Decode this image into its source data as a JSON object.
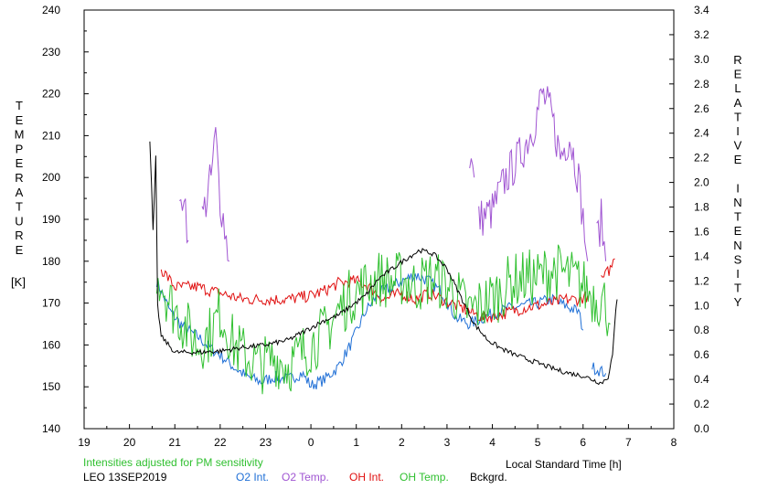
{
  "chart_data": {
    "type": "line",
    "x_unit_label": "Local Standard Time [h]",
    "x_ticks": [
      "19",
      "20",
      "21",
      "22",
      "23",
      "0",
      "1",
      "2",
      "3",
      "4",
      "5",
      "6",
      "7",
      "8"
    ],
    "x_range": [
      19,
      32
    ],
    "y_left": {
      "label_letters": [
        "T",
        "E",
        "M",
        "P",
        "E",
        "R",
        "A",
        "T",
        "U",
        "R",
        "E"
      ],
      "unit": "[K]",
      "range": [
        140,
        240
      ],
      "ticks": [
        "140",
        "150",
        "160",
        "170",
        "180",
        "190",
        "200",
        "210",
        "220",
        "230",
        "240"
      ]
    },
    "y_right": {
      "label_letters": [
        "R",
        "E",
        "L",
        "A",
        "T",
        "I",
        "V",
        "E",
        "",
        "I",
        "N",
        "T",
        "E",
        "N",
        "S",
        "I",
        "T",
        "Y"
      ],
      "range": [
        0.0,
        3.4
      ],
      "ticks": [
        "0.0",
        "0.2",
        "0.4",
        "0.6",
        "0.8",
        "1.0",
        "1.2",
        "1.4",
        "1.6",
        "1.8",
        "2.0",
        "2.2",
        "2.4",
        "2.6",
        "2.8",
        "3.0",
        "3.2",
        "3.4"
      ]
    },
    "note": "Intensities adjusted for PM sensitivity",
    "station": "LEO 13SEP2019",
    "colors": {
      "o2_int": "#1f6fd6",
      "o2_temp": "#a055d2",
      "oh_int": "#e01010",
      "oh_temp": "#30c030",
      "bckgrd": "#000000"
    },
    "series": [
      {
        "name": "O2 Int.",
        "key": "o2_int",
        "axis": "right",
        "noise": 0.05,
        "segments": [
          [
            [
              20.6,
              1.2
            ],
            [
              20.9,
              0.95
            ],
            [
              21.2,
              0.82
            ],
            [
              21.5,
              0.75
            ],
            [
              21.8,
              0.65
            ],
            [
              22.0,
              0.6
            ],
            [
              22.3,
              0.5
            ],
            [
              22.6,
              0.42
            ],
            [
              22.9,
              0.38
            ],
            [
              23.2,
              0.42
            ],
            [
              23.5,
              0.4
            ],
            [
              23.8,
              0.45
            ],
            [
              24.0,
              0.35
            ],
            [
              24.3,
              0.4
            ],
            [
              24.6,
              0.5
            ],
            [
              24.9,
              0.7
            ],
            [
              25.2,
              0.95
            ],
            [
              25.5,
              1.1
            ],
            [
              25.8,
              1.15
            ],
            [
              26.0,
              1.2
            ],
            [
              26.3,
              1.25
            ],
            [
              26.6,
              1.2
            ],
            [
              26.9,
              1.1
            ],
            [
              27.2,
              0.9
            ],
            [
              27.5,
              0.85
            ],
            [
              27.8,
              0.9
            ],
            [
              28.1,
              0.95
            ],
            [
              28.4,
              0.98
            ],
            [
              28.7,
              1.0
            ],
            [
              29.0,
              1.02
            ],
            [
              29.3,
              1.05
            ],
            [
              29.6,
              1.0
            ],
            [
              29.9,
              0.95
            ],
            [
              30.0,
              0.8
            ]
          ],
          [
            [
              30.2,
              0.5
            ],
            [
              30.5,
              0.45
            ]
          ]
        ]
      },
      {
        "name": "O2 Temp.",
        "key": "o2_temp",
        "axis": "left",
        "noise": 5,
        "segments": [
          [
            [
              21.1,
              190
            ],
            [
              21.2,
              198
            ],
            [
              21.3,
              185
            ]
          ],
          [
            [
              21.6,
              190
            ],
            [
              21.8,
              200
            ],
            [
              21.9,
              210
            ],
            [
              22.0,
              195
            ],
            [
              22.1,
              188
            ],
            [
              22.2,
              180
            ]
          ],
          [
            [
              27.5,
              205
            ],
            [
              27.6,
              200
            ]
          ],
          [
            [
              27.7,
              190
            ],
            [
              28.0,
              192
            ],
            [
              28.3,
              200
            ],
            [
              28.6,
              205
            ],
            [
              28.9,
              212
            ],
            [
              29.1,
              220
            ],
            [
              29.3,
              215
            ],
            [
              29.5,
              205
            ],
            [
              29.7,
              210
            ],
            [
              29.9,
              200
            ],
            [
              30.0,
              190
            ],
            [
              30.1,
              180
            ]
          ],
          [
            [
              30.3,
              185
            ],
            [
              30.4,
              190
            ],
            [
              30.5,
              180
            ]
          ]
        ]
      },
      {
        "name": "OH Int.",
        "key": "oh_int",
        "axis": "right",
        "noise": 0.05,
        "segments": [
          [
            [
              20.7,
              1.3
            ],
            [
              21.0,
              1.15
            ],
            [
              21.5,
              1.15
            ],
            [
              22.0,
              1.1
            ],
            [
              22.5,
              1.05
            ],
            [
              23.0,
              1.05
            ],
            [
              23.5,
              1.05
            ],
            [
              24.0,
              1.08
            ],
            [
              24.3,
              1.12
            ],
            [
              24.6,
              1.18
            ],
            [
              25.0,
              1.2
            ],
            [
              25.3,
              1.15
            ],
            [
              25.6,
              1.05
            ],
            [
              26.0,
              1.1
            ],
            [
              26.3,
              1.05
            ],
            [
              26.6,
              1.1
            ],
            [
              26.9,
              1.05
            ],
            [
              27.2,
              1.0
            ],
            [
              27.5,
              0.95
            ],
            [
              27.8,
              0.9
            ],
            [
              28.1,
              0.92
            ],
            [
              28.4,
              0.95
            ],
            [
              28.7,
              0.98
            ],
            [
              29.0,
              1.0
            ],
            [
              29.3,
              1.02
            ],
            [
              29.6,
              1.05
            ],
            [
              29.9,
              1.05
            ],
            [
              30.1,
              1.08
            ]
          ],
          [
            [
              30.4,
              1.2
            ],
            [
              30.6,
              1.3
            ],
            [
              30.7,
              1.38
            ]
          ]
        ]
      },
      {
        "name": "OH Temp.",
        "key": "oh_temp",
        "axis": "left",
        "noise": 7,
        "segments": [
          [
            [
              20.6,
              178
            ],
            [
              20.9,
              170
            ],
            [
              21.2,
              165
            ],
            [
              21.5,
              160
            ],
            [
              21.8,
              163
            ],
            [
              22.0,
              168
            ],
            [
              22.3,
              160
            ],
            [
              22.6,
              157
            ],
            [
              22.9,
              155
            ],
            [
              23.2,
              157
            ],
            [
              23.5,
              155
            ],
            [
              23.8,
              158
            ],
            [
              24.0,
              160
            ],
            [
              24.3,
              163
            ],
            [
              24.6,
              168
            ],
            [
              24.9,
              172
            ],
            [
              25.2,
              174
            ],
            [
              25.5,
              176
            ],
            [
              25.8,
              175
            ],
            [
              26.0,
              176
            ],
            [
              26.3,
              174
            ],
            [
              26.6,
              176
            ],
            [
              26.9,
              175
            ],
            [
              27.2,
              172
            ],
            [
              27.5,
              168
            ],
            [
              27.8,
              170
            ],
            [
              28.1,
              172
            ],
            [
              28.4,
              175
            ],
            [
              28.7,
              176
            ],
            [
              29.0,
              176
            ],
            [
              29.3,
              178
            ],
            [
              29.6,
              177
            ],
            [
              29.9,
              175
            ],
            [
              30.2,
              172
            ],
            [
              30.5,
              170
            ],
            [
              30.6,
              165
            ]
          ]
        ]
      },
      {
        "name": "Bckgrd.",
        "key": "bckgrd",
        "axis": "right",
        "noise": 0.02,
        "segments": [
          [
            [
              20.45,
              2.35
            ],
            [
              20.52,
              1.6
            ],
            [
              20.58,
              2.2
            ],
            [
              20.62,
              1.0
            ],
            [
              20.7,
              0.75
            ],
            [
              21.0,
              0.62
            ],
            [
              21.5,
              0.62
            ],
            [
              22.0,
              0.63
            ],
            [
              22.5,
              0.66
            ],
            [
              23.0,
              0.68
            ],
            [
              23.5,
              0.72
            ],
            [
              24.0,
              0.82
            ],
            [
              24.3,
              0.88
            ],
            [
              24.6,
              0.92
            ],
            [
              24.9,
              1.0
            ],
            [
              25.2,
              1.08
            ],
            [
              25.5,
              1.22
            ],
            [
              25.8,
              1.3
            ],
            [
              26.1,
              1.38
            ],
            [
              26.4,
              1.45
            ],
            [
              26.7,
              1.42
            ],
            [
              27.0,
              1.3
            ],
            [
              27.2,
              1.15
            ],
            [
              27.4,
              1.0
            ],
            [
              27.6,
              0.85
            ],
            [
              27.9,
              0.72
            ],
            [
              28.2,
              0.65
            ],
            [
              28.5,
              0.6
            ],
            [
              28.8,
              0.56
            ],
            [
              29.1,
              0.52
            ],
            [
              29.4,
              0.48
            ],
            [
              29.7,
              0.45
            ],
            [
              30.0,
              0.43
            ],
            [
              30.2,
              0.4
            ],
            [
              30.4,
              0.37
            ],
            [
              30.55,
              0.42
            ],
            [
              30.65,
              0.6
            ],
            [
              30.72,
              0.95
            ],
            [
              30.75,
              1.05
            ]
          ]
        ]
      }
    ]
  }
}
